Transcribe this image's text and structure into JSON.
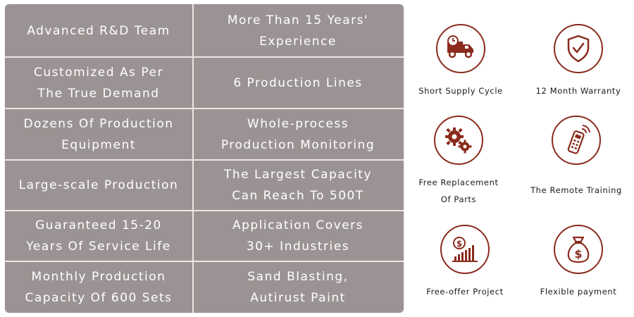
{
  "table": {
    "rows": [
      {
        "left": "Advanced R&D Team",
        "right": "More Than 15 Years'\nExperience"
      },
      {
        "left": "Customized As Per\nThe True Demand",
        "right": "6 Production Lines"
      },
      {
        "left": "Dozens Of Production\nEquipment",
        "right": "Whole-process\nProduction Monitoring"
      },
      {
        "left": "Large-scale Production",
        "right": "The Largest Capacity\nCan Reach To 500T"
      },
      {
        "left": "Guaranteed 15-20\nYears Of Service Life",
        "right": "Application Covers\n30+ Industries"
      },
      {
        "left": "Monthly Production\nCapacity Of 600 Sets",
        "right": "Sand Blasting,\nAutirust Paint"
      }
    ]
  },
  "features": [
    {
      "icon": "delivery-truck-icon",
      "label": "Short Supply Cycle"
    },
    {
      "icon": "shield-check-icon",
      "label": "12 Month Warranty"
    },
    {
      "icon": "gears-icon",
      "label": "Free Replacement\nOf Parts"
    },
    {
      "icon": "remote-control-icon",
      "label": "The Remote Training"
    },
    {
      "icon": "dollar-bar-chart-icon",
      "label": "Free-offer Project"
    },
    {
      "icon": "money-bag-icon",
      "label": "Flexible payment"
    }
  ],
  "colors": {
    "table_bg": "#9b9393",
    "divider": "#eae6e6",
    "icon_red": "#8a2b1d",
    "text": "#ffffff"
  }
}
